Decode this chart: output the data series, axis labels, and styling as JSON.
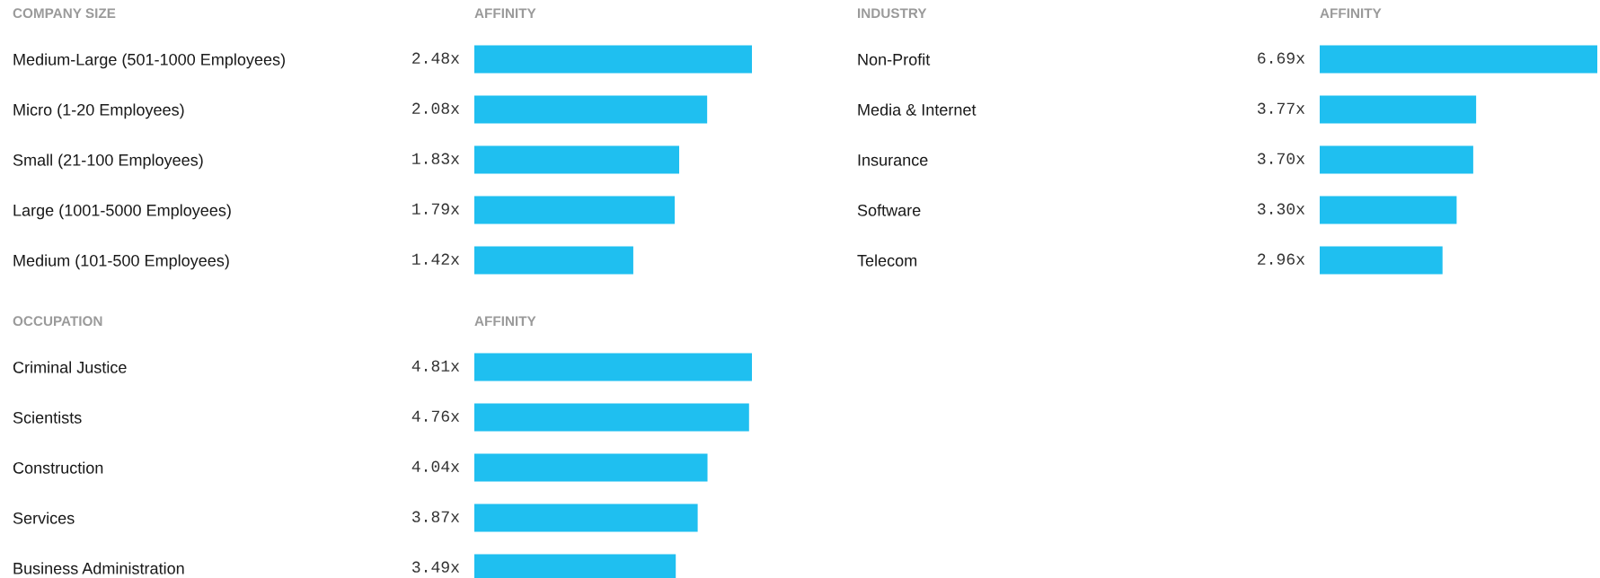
{
  "chart_data": [
    {
      "type": "bar",
      "orientation": "horizontal",
      "title": "COMPANY SIZE",
      "xlabel": "AFFINITY",
      "color": "#1fbff0",
      "tick_labels": "y",
      "categories": [
        "Medium-Large (501-1000 Employees)",
        "Micro (1-20 Employees)",
        "Small (21-100 Employees)",
        "Large (1001-5000 Employees)",
        "Medium (101-500 Employees)"
      ],
      "values": [
        2.48,
        2.08,
        1.83,
        1.79,
        1.42
      ],
      "value_labels": [
        "2.48x",
        "2.08x",
        "1.83x",
        "1.79x",
        "1.42x"
      ]
    },
    {
      "type": "bar",
      "orientation": "horizontal",
      "title": "INDUSTRY",
      "xlabel": "AFFINITY",
      "color": "#1fbff0",
      "tick_labels": "y",
      "categories": [
        "Non-Profit",
        "Media & Internet",
        "Insurance",
        "Software",
        "Telecom"
      ],
      "values": [
        6.69,
        3.77,
        3.7,
        3.3,
        2.96
      ],
      "value_labels": [
        "6.69x",
        "3.77x",
        "3.70x",
        "3.30x",
        "2.96x"
      ]
    },
    {
      "type": "bar",
      "orientation": "horizontal",
      "title": "OCCUPATION",
      "xlabel": "AFFINITY",
      "color": "#1fbff0",
      "tick_labels": "y",
      "categories": [
        "Criminal Justice",
        "Scientists",
        "Construction",
        "Services",
        "Business Administration"
      ],
      "values": [
        4.81,
        4.76,
        4.04,
        3.87,
        3.49
      ],
      "value_labels": [
        "4.81x",
        "4.76x",
        "4.04x",
        "3.87x",
        "3.49x"
      ]
    }
  ]
}
